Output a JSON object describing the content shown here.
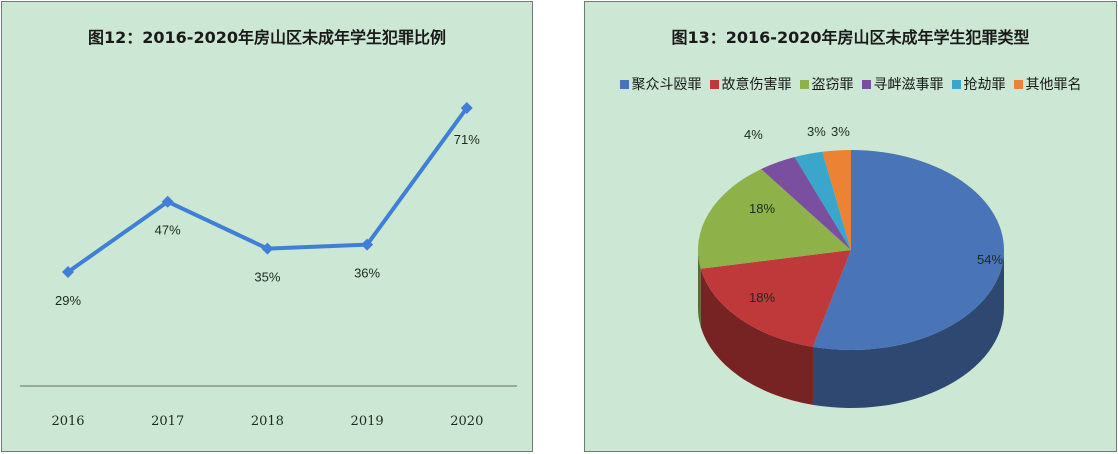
{
  "left_panel": {
    "title": "图12：2016-2020年房山区未成年学生犯罪比例"
  },
  "right_panel": {
    "title": "图13：2016-2020年房山区未成年学生犯罪类型",
    "legend": [
      {
        "label": "聚众斗殴罪",
        "color": "#4a74b8"
      },
      {
        "label": "故意伤害罪",
        "color": "#c0393a"
      },
      {
        "label": "盗窃罪",
        "color": "#8fb14a"
      },
      {
        "label": "寻衅滋事罪",
        "color": "#7a4fa0"
      },
      {
        "label": "抢劫罪",
        "color": "#3aa6cc"
      },
      {
        "label": "其他罪名",
        "color": "#ec8234"
      }
    ]
  },
  "colors": {
    "panel_bg": "#cce8d4",
    "line": "#3f7fd6",
    "axis": "#93aa9c"
  },
  "chart_data": [
    {
      "type": "line",
      "title": "图12：2016-2020年房山区未成年学生犯罪比例",
      "categories": [
        "2016",
        "2017",
        "2018",
        "2019",
        "2020"
      ],
      "values": [
        29,
        47,
        35,
        36,
        71
      ],
      "data_labels": [
        "29%",
        "47%",
        "35%",
        "36%",
        "71%"
      ],
      "xlabel": "",
      "ylabel": "",
      "grid": false,
      "legend": null
    },
    {
      "type": "pie",
      "title": "图13：2016-2020年房山区未成年学生犯罪类型",
      "categories": [
        "聚众斗殴罪",
        "故意伤害罪",
        "盗窃罪",
        "寻衅滋事罪",
        "抢劫罪",
        "其他罪名"
      ],
      "values": [
        54,
        18,
        18,
        4,
        3,
        3
      ],
      "data_labels": [
        "54%",
        "18%",
        "18%",
        "4%",
        "3%",
        "3%"
      ],
      "colors": [
        "#4a74b8",
        "#c0393a",
        "#8fb14a",
        "#7a4fa0",
        "#3aa6cc",
        "#ec8234"
      ],
      "legend_position": "top",
      "style": "3d"
    }
  ]
}
